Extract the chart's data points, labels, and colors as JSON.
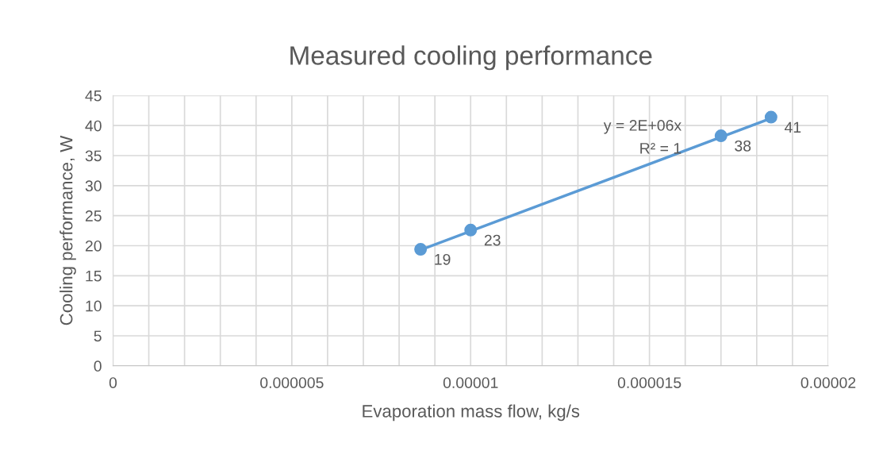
{
  "chart_data": {
    "type": "scatter",
    "title": "Measured cooling performance",
    "xlabel": "Evaporation mass flow, kg/s",
    "ylabel": "Cooling performance, W",
    "series": [
      {
        "marker": "circle",
        "color": "#5b9bd5",
        "x": [
          8.6e-06,
          1e-05,
          1.7e-05,
          1.84e-05
        ],
        "values": [
          19.4,
          22.6,
          38.3,
          41.4
        ],
        "value_labels": [
          "19",
          "23",
          "38",
          "41"
        ]
      },
      {
        "type": "line",
        "marker": "none",
        "color": "#5b9bd5",
        "x": [
          8.6e-06,
          1.84e-05
        ],
        "values": [
          19.3,
          41.2
        ]
      }
    ],
    "annotations": [
      "y = 2E+06x",
      "R² = 1"
    ],
    "xlim": [
      0,
      2e-05
    ],
    "ylim": [
      0,
      45
    ],
    "xticks": [
      {
        "value": 0,
        "label": "0"
      },
      {
        "value": 1e-06,
        "label": null
      },
      {
        "value": 2e-06,
        "label": null
      },
      {
        "value": 3e-06,
        "label": null
      },
      {
        "value": 4e-06,
        "label": null
      },
      {
        "value": 5e-06,
        "label": "0.000005"
      },
      {
        "value": 6e-06,
        "label": null
      },
      {
        "value": 7e-06,
        "label": null
      },
      {
        "value": 8e-06,
        "label": null
      },
      {
        "value": 9e-06,
        "label": null
      },
      {
        "value": 1e-05,
        "label": "0.00001"
      },
      {
        "value": 1.1e-05,
        "label": null
      },
      {
        "value": 1.2e-05,
        "label": null
      },
      {
        "value": 1.3e-05,
        "label": null
      },
      {
        "value": 1.4e-05,
        "label": null
      },
      {
        "value": 1.5e-05,
        "label": "0.000015"
      },
      {
        "value": 1.6e-05,
        "label": null
      },
      {
        "value": 1.7e-05,
        "label": null
      },
      {
        "value": 1.8e-05,
        "label": null
      },
      {
        "value": 1.9e-05,
        "label": null
      },
      {
        "value": 2e-05,
        "label": "0.00002"
      }
    ],
    "yticks": [
      0,
      5,
      10,
      15,
      20,
      25,
      30,
      35,
      40,
      45
    ],
    "grid": true,
    "legend": false
  }
}
